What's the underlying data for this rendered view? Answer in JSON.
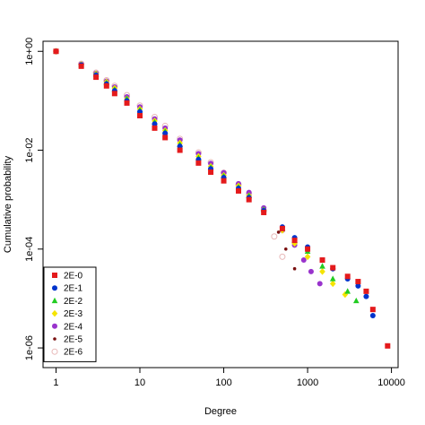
{
  "chart_data": {
    "type": "scatter",
    "title": "",
    "xlabel": "Degree",
    "ylabel": "Cumulative probability",
    "x_scale": "log",
    "y_scale": "log",
    "xlim": [
      0.7,
      12000
    ],
    "ylim": [
      4e-07,
      1.6
    ],
    "x_ticks": [
      {
        "value": 1,
        "label": "1"
      },
      {
        "value": 10,
        "label": "10"
      },
      {
        "value": 100,
        "label": "100"
      },
      {
        "value": 1000,
        "label": "1000"
      },
      {
        "value": 10000,
        "label": "10000"
      }
    ],
    "y_ticks": [
      {
        "value": 1,
        "label": "1e+00"
      },
      {
        "value": 0.01,
        "label": "1e-02"
      },
      {
        "value": 0.0001,
        "label": "1e-04"
      },
      {
        "value": 1e-06,
        "label": "1e-06"
      }
    ],
    "grid": false,
    "legend_position": "bottom-left",
    "series": [
      {
        "name": "2E-0",
        "marker": "square",
        "color": "#e41a1c",
        "points": [
          [
            1,
            1
          ],
          [
            2,
            0.5
          ],
          [
            3,
            0.3
          ],
          [
            4,
            0.2
          ],
          [
            5,
            0.14
          ],
          [
            7,
            0.09
          ],
          [
            10,
            0.05
          ],
          [
            15,
            0.028
          ],
          [
            20,
            0.018
          ],
          [
            30,
            0.01
          ],
          [
            50,
            0.0055
          ],
          [
            70,
            0.0036
          ],
          [
            100,
            0.0024
          ],
          [
            150,
            0.0015
          ],
          [
            200,
            0.001
          ],
          [
            300,
            0.00055
          ],
          [
            500,
            0.00026
          ],
          [
            700,
            0.00015
          ],
          [
            1000,
            0.0001
          ],
          [
            1500,
            6e-05
          ],
          [
            2000,
            4.2e-05
          ],
          [
            3000,
            2.8e-05
          ],
          [
            4000,
            2.2e-05
          ],
          [
            5000,
            1.4e-05
          ],
          [
            6000,
            6e-06
          ],
          [
            9000,
            1.1e-06
          ]
        ]
      },
      {
        "name": "2E-1",
        "marker": "circle",
        "color": "#0033cc",
        "points": [
          [
            1,
            1
          ],
          [
            2,
            0.53
          ],
          [
            3,
            0.33
          ],
          [
            4,
            0.22
          ],
          [
            5,
            0.16
          ],
          [
            7,
            0.1
          ],
          [
            10,
            0.06
          ],
          [
            15,
            0.034
          ],
          [
            20,
            0.022
          ],
          [
            30,
            0.012
          ],
          [
            50,
            0.0065
          ],
          [
            70,
            0.0042
          ],
          [
            100,
            0.0028
          ],
          [
            150,
            0.0017
          ],
          [
            200,
            0.0011
          ],
          [
            300,
            0.0006
          ],
          [
            500,
            0.00028
          ],
          [
            700,
            0.00017
          ],
          [
            1000,
            0.00011
          ],
          [
            1500,
            6e-05
          ],
          [
            2000,
            4e-05
          ],
          [
            3000,
            2.5e-05
          ],
          [
            4000,
            1.8e-05
          ],
          [
            5000,
            1.1e-05
          ],
          [
            6000,
            4.5e-06
          ]
        ]
      },
      {
        "name": "2E-2",
        "marker": "triangle",
        "color": "#22cc22",
        "points": [
          [
            1,
            1
          ],
          [
            2,
            0.53
          ],
          [
            3,
            0.34
          ],
          [
            4,
            0.23
          ],
          [
            5,
            0.17
          ],
          [
            7,
            0.11
          ],
          [
            10,
            0.065
          ],
          [
            15,
            0.037
          ],
          [
            20,
            0.024
          ],
          [
            30,
            0.013
          ],
          [
            50,
            0.007
          ],
          [
            70,
            0.0045
          ],
          [
            100,
            0.003
          ],
          [
            150,
            0.0018
          ],
          [
            200,
            0.0012
          ],
          [
            300,
            0.00063
          ],
          [
            500,
            0.00026
          ],
          [
            700,
            0.00015
          ],
          [
            1000,
            9e-05
          ],
          [
            1500,
            4.5e-05
          ],
          [
            2000,
            2.5e-05
          ],
          [
            3000,
            1.4e-05
          ],
          [
            3800,
            9e-06
          ]
        ]
      },
      {
        "name": "2E-3",
        "marker": "diamond",
        "color": "#f5e400",
        "points": [
          [
            1,
            1
          ],
          [
            2,
            0.54
          ],
          [
            3,
            0.35
          ],
          [
            4,
            0.24
          ],
          [
            5,
            0.18
          ],
          [
            7,
            0.11
          ],
          [
            10,
            0.068
          ],
          [
            15,
            0.039
          ],
          [
            20,
            0.025
          ],
          [
            30,
            0.014
          ],
          [
            50,
            0.0075
          ],
          [
            70,
            0.0047
          ],
          [
            100,
            0.0031
          ],
          [
            150,
            0.0019
          ],
          [
            200,
            0.0012
          ],
          [
            300,
            0.00062
          ],
          [
            500,
            0.00024
          ],
          [
            700,
            0.00013
          ],
          [
            1000,
            7e-05
          ],
          [
            1500,
            3.5e-05
          ],
          [
            2000,
            2e-05
          ],
          [
            2800,
            1.2e-05
          ]
        ]
      },
      {
        "name": "2E-4",
        "marker": "circle",
        "color": "#9933cc",
        "points": [
          [
            1,
            1
          ],
          [
            2,
            0.55
          ],
          [
            3,
            0.36
          ],
          [
            4,
            0.25
          ],
          [
            5,
            0.19
          ],
          [
            7,
            0.12
          ],
          [
            10,
            0.075
          ],
          [
            15,
            0.043
          ],
          [
            20,
            0.028
          ],
          [
            30,
            0.016
          ],
          [
            50,
            0.0085
          ],
          [
            70,
            0.0054
          ],
          [
            100,
            0.0035
          ],
          [
            150,
            0.0021
          ],
          [
            200,
            0.0014
          ],
          [
            300,
            0.00068
          ],
          [
            500,
            0.00024
          ],
          [
            700,
            0.00012
          ],
          [
            900,
            6e-05
          ],
          [
            1100,
            3.5e-05
          ],
          [
            1400,
            2e-05
          ]
        ]
      },
      {
        "name": "2E-5",
        "marker": "dot",
        "color": "#7a1010",
        "points": [
          [
            1,
            1
          ],
          [
            2,
            0.55
          ],
          [
            3,
            0.36
          ],
          [
            4,
            0.25
          ],
          [
            5,
            0.19
          ],
          [
            7,
            0.12
          ],
          [
            10,
            0.076
          ],
          [
            15,
            0.044
          ],
          [
            20,
            0.029
          ],
          [
            30,
            0.016
          ],
          [
            50,
            0.0085
          ],
          [
            70,
            0.0054
          ],
          [
            100,
            0.0034
          ],
          [
            150,
            0.002
          ],
          [
            200,
            0.0013
          ],
          [
            300,
            0.00065
          ],
          [
            450,
            0.00022
          ],
          [
            550,
            0.0001
          ],
          [
            700,
            4e-05
          ]
        ]
      },
      {
        "name": "2E-6",
        "marker": "open-circle",
        "color": "#e8b8b8",
        "points": [
          [
            1,
            1
          ],
          [
            2,
            0.56
          ],
          [
            3,
            0.37
          ],
          [
            4,
            0.26
          ],
          [
            5,
            0.2
          ],
          [
            7,
            0.13
          ],
          [
            10,
            0.08
          ],
          [
            15,
            0.047
          ],
          [
            20,
            0.031
          ],
          [
            30,
            0.017
          ],
          [
            50,
            0.009
          ],
          [
            70,
            0.0057
          ],
          [
            100,
            0.0035
          ],
          [
            150,
            0.002
          ],
          [
            200,
            0.0013
          ],
          [
            300,
            0.0006
          ],
          [
            400,
            0.00018
          ],
          [
            500,
            7e-05
          ]
        ]
      }
    ]
  }
}
